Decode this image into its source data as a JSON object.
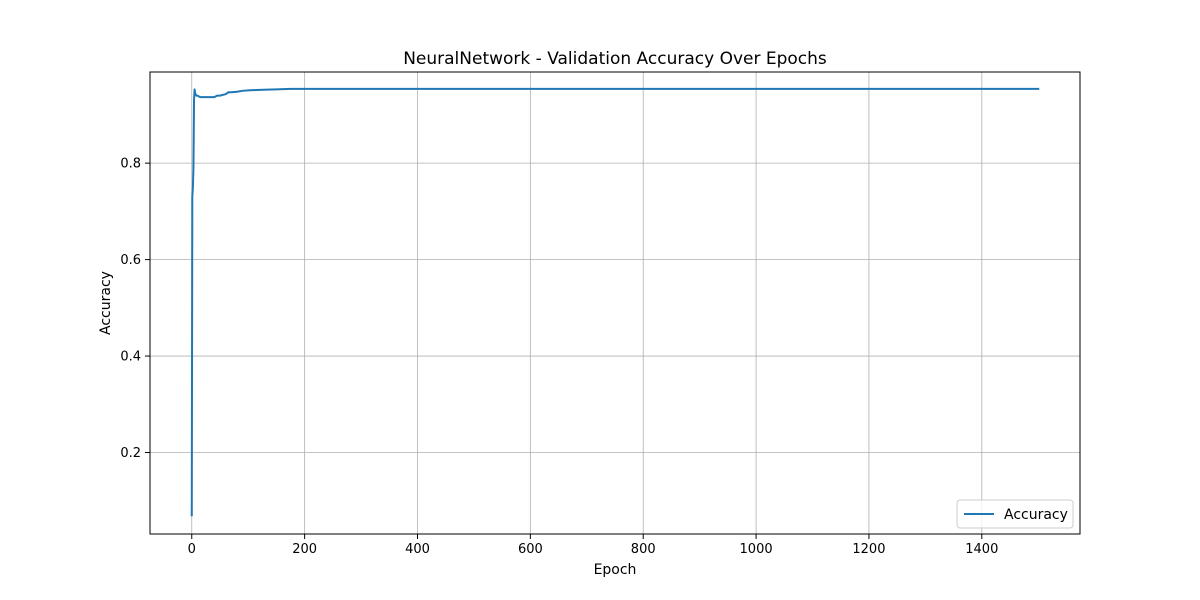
{
  "chart_data": {
    "type": "line",
    "title": "NeuralNetwork - Validation Accuracy Over Epochs",
    "xlabel": "Epoch",
    "ylabel": "Accuracy",
    "xlim": [
      -74,
      1574
    ],
    "ylim": [
      0.031,
      0.989
    ],
    "xticks": [
      0,
      200,
      400,
      600,
      800,
      1000,
      1200,
      1400
    ],
    "yticks": [
      0.2,
      0.4,
      0.6,
      0.8
    ],
    "xtick_labels": [
      "0",
      "200",
      "400",
      "600",
      "800",
      "1000",
      "1200",
      "1400"
    ],
    "ytick_labels": [
      "0.2",
      "0.4",
      "0.6",
      "0.8"
    ],
    "grid": true,
    "legend_position": "bottom-right",
    "series": [
      {
        "name": "Accuracy",
        "color": "#1f77b4",
        "x": [
          0,
          1,
          2,
          3,
          4,
          5,
          6,
          8,
          10,
          15,
          20,
          30,
          40,
          45,
          50,
          60,
          65,
          70,
          80,
          90,
          100,
          120,
          150,
          175,
          200,
          300,
          500,
          700,
          900,
          1100,
          1300,
          1500
        ],
        "y": [
          0.07,
          0.73,
          0.75,
          0.79,
          0.93,
          0.953,
          0.945,
          0.94,
          0.94,
          0.937,
          0.937,
          0.937,
          0.937,
          0.94,
          0.94,
          0.943,
          0.947,
          0.947,
          0.948,
          0.95,
          0.951,
          0.952,
          0.953,
          0.954,
          0.954,
          0.954,
          0.954,
          0.954,
          0.954,
          0.954,
          0.954,
          0.954
        ]
      }
    ]
  }
}
